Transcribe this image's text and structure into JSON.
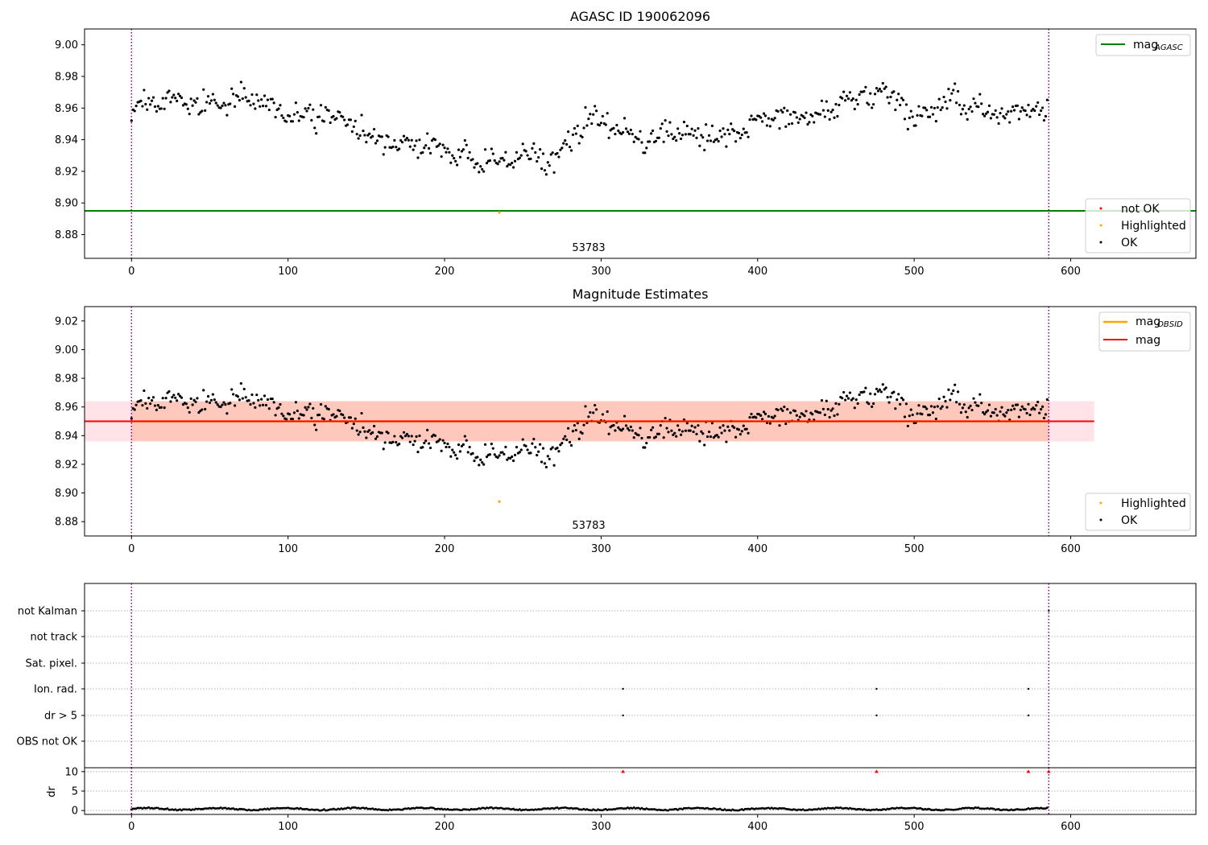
{
  "chart_data": [
    {
      "type": "scatter",
      "title": "AGASC ID 190062096",
      "xlim": [
        -30,
        680
      ],
      "ylim": [
        8.865,
        9.01
      ],
      "x_ticks": [
        0,
        100,
        200,
        300,
        400,
        500,
        600
      ],
      "y_ticks": [
        8.88,
        8.9,
        8.92,
        8.94,
        8.96,
        8.98,
        9.0
      ],
      "y_tick_labels": [
        "8.88",
        "8.90",
        "8.92",
        "8.94",
        "8.96",
        "8.98",
        "9.00"
      ],
      "hlines": [
        {
          "name": "mag",
          "sub": "AGASC",
          "y": 8.895,
          "color": "#008000"
        }
      ],
      "vlines": [
        {
          "x": 0,
          "color": "#800080"
        },
        {
          "x": 586,
          "color": "#800080"
        }
      ],
      "annotation": {
        "text": "53783",
        "x": 293,
        "y": 8.868
      },
      "highlighted": [
        {
          "x": 235,
          "y": 8.894
        }
      ],
      "legends": [
        {
          "location": "upper right",
          "items": [
            {
              "label": "mag",
              "sub": "AGASC",
              "kind": "line",
              "color": "#008000"
            }
          ]
        },
        {
          "location": "lower right",
          "items": [
            {
              "label": "not OK",
              "kind": "point",
              "color": "#ff0000"
            },
            {
              "label": "Highlighted",
              "kind": "point",
              "color": "#ffa500"
            },
            {
              "label": "OK",
              "kind": "point",
              "color": "#000000"
            }
          ]
        }
      ],
      "series": [
        {
          "name": "OK",
          "color": "#000000",
          "n_points": 586,
          "x_start": 0,
          "x_step": 1,
          "y_trend": [
            [
              0,
              8.96
            ],
            [
              30,
              8.964
            ],
            [
              70,
              8.964
            ],
            [
              110,
              8.956
            ],
            [
              140,
              8.95
            ],
            [
              165,
              8.938
            ],
            [
              200,
              8.935
            ],
            [
              235,
              8.924
            ],
            [
              270,
              8.932
            ],
            [
              290,
              8.95
            ],
            [
              330,
              8.944
            ],
            [
              360,
              8.94
            ],
            [
              400,
              8.95
            ],
            [
              440,
              8.958
            ],
            [
              470,
              8.966
            ],
            [
              490,
              8.97
            ],
            [
              500,
              8.955
            ],
            [
              530,
              8.962
            ],
            [
              586,
              8.956
            ]
          ],
          "y_spread": 0.006
        }
      ]
    },
    {
      "type": "scatter",
      "title": "Magnitude Estimates",
      "xlim": [
        -30,
        680
      ],
      "ylim": [
        8.87,
        9.03
      ],
      "x_ticks": [
        0,
        100,
        200,
        300,
        400,
        500,
        600
      ],
      "y_ticks": [
        8.88,
        8.9,
        8.92,
        8.94,
        8.96,
        8.98,
        9.0,
        9.02
      ],
      "y_tick_labels": [
        "8.88",
        "8.90",
        "8.92",
        "8.94",
        "8.96",
        "8.98",
        "9.00",
        "9.02"
      ],
      "hlines": [
        {
          "name": "mag",
          "sub": "OBSID",
          "y": 8.95,
          "x_range": [
            0,
            586
          ],
          "color": "#ffa500"
        },
        {
          "name": "mag",
          "y": 8.95,
          "x_range": [
            -30,
            615
          ],
          "color": "#ff0000"
        }
      ],
      "bands": [
        {
          "y": [
            8.936,
            8.964
          ],
          "x_range": [
            -30,
            615
          ],
          "color": "#ffc0cb",
          "opacity": 0.45
        },
        {
          "y": [
            8.936,
            8.964
          ],
          "x_range": [
            0,
            586
          ],
          "color": "#ffa07a",
          "opacity": 0.4
        }
      ],
      "vlines": [
        {
          "x": 0,
          "color": "#800080"
        },
        {
          "x": 586,
          "color": "#800080"
        }
      ],
      "annotation": {
        "text": "53783",
        "x": 293,
        "y": 8.874
      },
      "highlighted": [
        {
          "x": 235,
          "y": 8.894
        }
      ],
      "legends": [
        {
          "location": "upper right",
          "items": [
            {
              "label": "mag",
              "sub": "OBSID",
              "kind": "line",
              "color": "#ffa500"
            },
            {
              "label": "mag",
              "kind": "line",
              "color": "#ff0000"
            }
          ]
        },
        {
          "location": "lower right",
          "items": [
            {
              "label": "Highlighted",
              "kind": "point",
              "color": "#ffa500"
            },
            {
              "label": "OK",
              "kind": "point",
              "color": "#000000"
            }
          ]
        }
      ]
    },
    {
      "type": "scatter",
      "xlim": [
        -30,
        680
      ],
      "categories": [
        "not Kalman",
        "not track",
        "Sat. pixel.",
        "Ion. rad.",
        "dr > 5",
        "OBS not OK"
      ],
      "grid": "dotted horizontal",
      "flags": [
        {
          "category": "Ion. rad.",
          "x": [
            314,
            476,
            573
          ]
        },
        {
          "category": "dr > 5",
          "x": [
            314,
            476,
            573
          ]
        },
        {
          "category": "not Kalman",
          "x": [
            586
          ]
        }
      ],
      "vlines": [
        {
          "x": 0,
          "color": "#800080"
        },
        {
          "x": 586,
          "color": "#800080"
        }
      ]
    },
    {
      "type": "line",
      "ylabel": "dr",
      "xlim": [
        -30,
        680
      ],
      "ylim": [
        -1,
        11
      ],
      "x_ticks": [
        0,
        100,
        200,
        300,
        400,
        500,
        600
      ],
      "y_ticks": [
        0,
        5,
        10
      ],
      "y_tick_labels": [
        "0",
        "5",
        "10"
      ],
      "dr_level": 0.4,
      "outliers": [
        {
          "x": 314,
          "y": 10
        },
        {
          "x": 476,
          "y": 10
        },
        {
          "x": 573,
          "y": 10
        },
        {
          "x": 586,
          "y": 10
        }
      ],
      "vlines": [
        {
          "x": 0,
          "color": "#800080"
        },
        {
          "x": 586,
          "color": "#800080"
        }
      ]
    }
  ]
}
